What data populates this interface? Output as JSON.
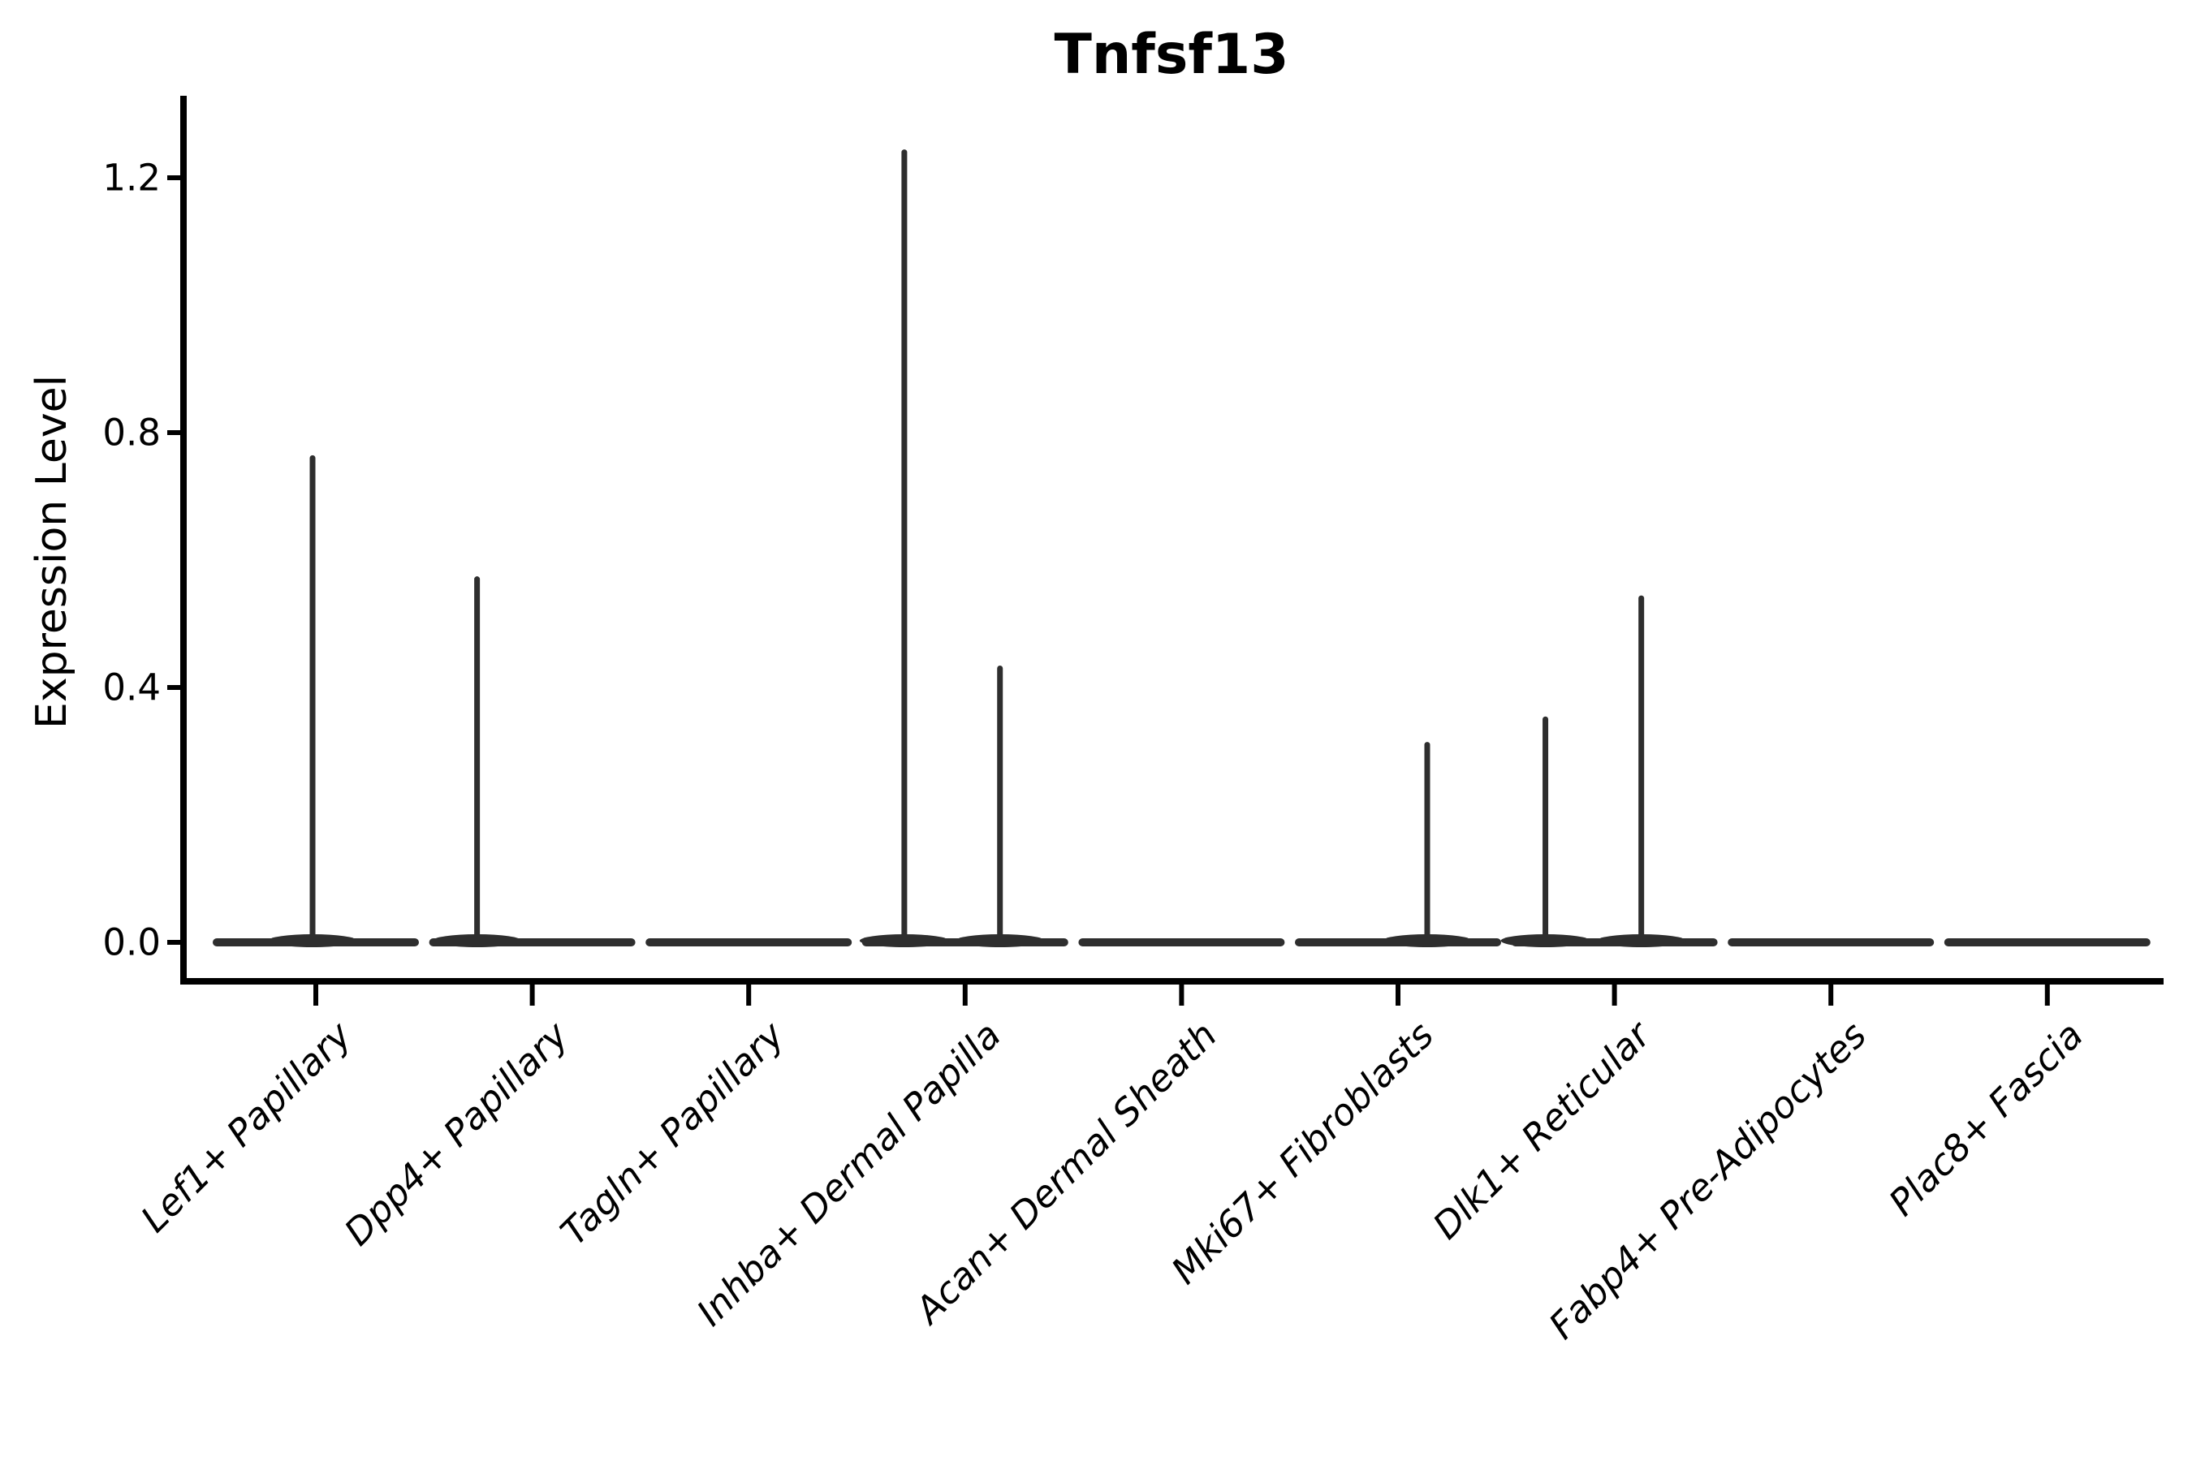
{
  "title": "Tnfsf13",
  "axes": {
    "y_label": "Expression Level",
    "y_tick_labels": [
      "0.0",
      "0.4",
      "0.8",
      "1.2"
    ],
    "x_tick_labels": [
      "Lef1+ Papillary",
      "Dpp4+ Papillary",
      "Tagln+ Papillary",
      "Inhba+ Dermal Papilla",
      "Acan+ Dermal Sheath",
      "Mki67+ Fibroblasts",
      "Dlk1+ Reticular",
      "Fabp4+ Pre-Adipocytes",
      "Plac8+ Fascia"
    ]
  },
  "chart_data": {
    "type": "violin",
    "title": "Tnfsf13",
    "xlabel": "",
    "ylabel": "Expression Level",
    "ylim": [
      -0.06,
      1.3
    ],
    "y_ticks": [
      0.0,
      0.4,
      0.8,
      1.2
    ],
    "categories": [
      "Lef1+ Papillary",
      "Dpp4+ Papillary",
      "Tagln+ Papillary",
      "Inhba+ Dermal Papilla",
      "Acan+ Dermal Sheath",
      "Mki67+ Fibroblasts",
      "Dlk1+ Reticular",
      "Fabp4+ Pre-Adipocytes",
      "Plac8+ Fascia"
    ],
    "series": [
      {
        "category": "Lef1+ Papillary",
        "baseline": 0.0,
        "spikes": [
          {
            "offset_frac": -0.015,
            "max": 0.76
          }
        ]
      },
      {
        "category": "Dpp4+ Papillary",
        "baseline": 0.0,
        "spikes": [
          {
            "offset_frac": -0.255,
            "max": 0.57
          }
        ]
      },
      {
        "category": "Tagln+ Papillary",
        "baseline": 0.0,
        "spikes": []
      },
      {
        "category": "Inhba+ Dermal Papilla",
        "baseline": 0.0,
        "spikes": [
          {
            "offset_frac": -0.281,
            "max": 1.24
          },
          {
            "offset_frac": 0.161,
            "max": 0.43
          }
        ]
      },
      {
        "category": "Acan+ Dermal Sheath",
        "baseline": 0.0,
        "spikes": []
      },
      {
        "category": "Mki67+ Fibroblasts",
        "baseline": 0.0,
        "spikes": [
          {
            "offset_frac": 0.135,
            "max": 0.31
          }
        ]
      },
      {
        "category": "Dlk1+ Reticular",
        "baseline": 0.0,
        "spikes": [
          {
            "offset_frac": -0.319,
            "max": 0.35
          },
          {
            "offset_frac": 0.124,
            "max": 0.54
          }
        ]
      },
      {
        "category": "Fabp4+ Pre-Adipocytes",
        "baseline": 0.0,
        "spikes": []
      },
      {
        "category": "Plac8+ Fascia",
        "baseline": 0.0,
        "spikes": []
      }
    ],
    "grid": false,
    "legend": null,
    "colors": {
      "violin": "#2e2e2e",
      "axis": "#000000",
      "text": "#000000"
    }
  }
}
